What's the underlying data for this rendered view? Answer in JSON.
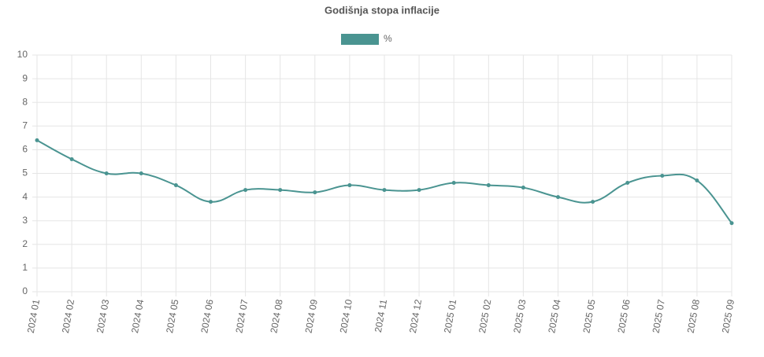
{
  "chart_data": {
    "type": "line",
    "title": "Godišnja stopa inflacije",
    "categories": [
      "2024 01",
      "2024 02",
      "2024 03",
      "2024 04",
      "2024 05",
      "2024 06",
      "2024 07",
      "2024 08",
      "2024 09",
      "2024 10",
      "2024 11",
      "2024 12",
      "2025 01",
      "2025 02",
      "2025 03",
      "2025 04",
      "2025 05",
      "2025 06",
      "2025 07",
      "2025 08",
      "2025 09"
    ],
    "series": [
      {
        "name": "%",
        "color": "#4a9491",
        "values": [
          6.4,
          5.6,
          5.0,
          5.0,
          4.5,
          3.8,
          4.3,
          4.3,
          4.2,
          4.5,
          4.3,
          4.3,
          4.6,
          4.5,
          4.4,
          4.0,
          3.8,
          4.6,
          4.9,
          4.7,
          2.9
        ]
      }
    ],
    "ylim": [
      0,
      10
    ],
    "yticks": [
      0,
      1,
      2,
      3,
      4,
      5,
      6,
      7,
      8,
      9,
      10
    ],
    "grid": true,
    "legend": "top"
  }
}
